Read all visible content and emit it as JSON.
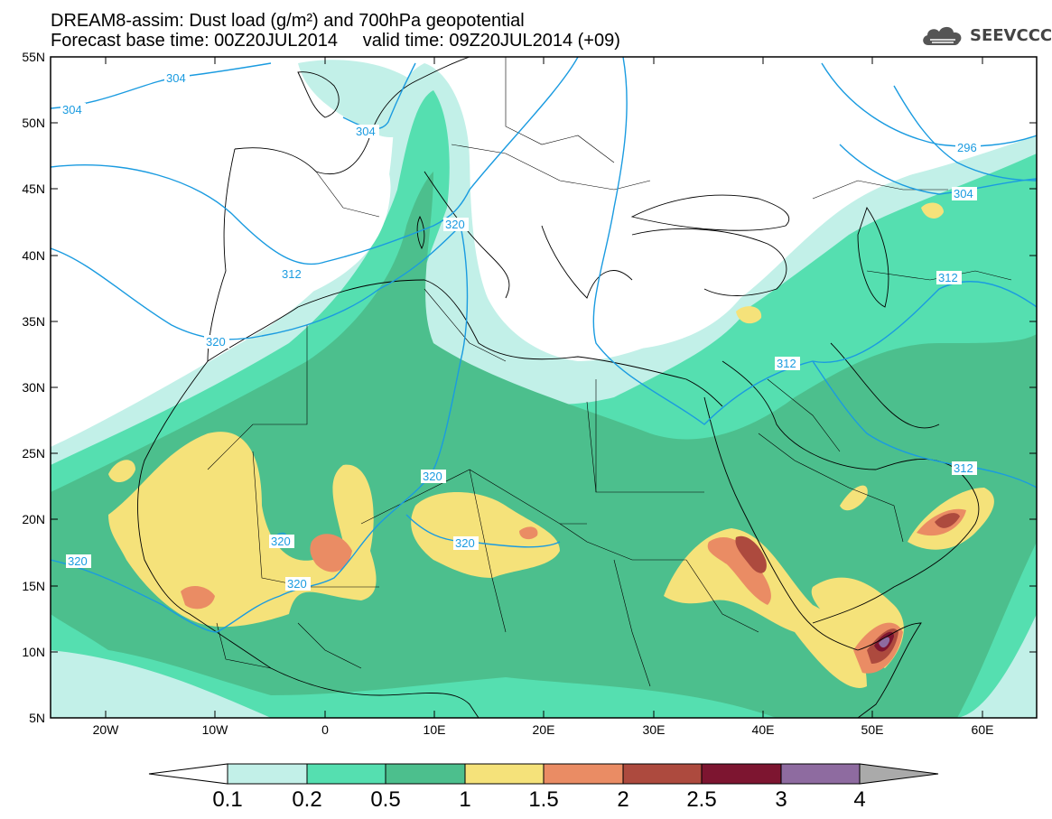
{
  "title": {
    "line1": "DREAM8-assim: Dust load (g/m²) and 700hPa geopotential",
    "line2": "Forecast base time: 00Z20JUL2014     valid time: 09Z20JUL2014 (+09)"
  },
  "logo": {
    "text": "SEEVCCC",
    "icon": "cloud-icon"
  },
  "axes": {
    "lat_labels": [
      "55N",
      "50N",
      "45N",
      "40N",
      "35N",
      "30N",
      "25N",
      "20N",
      "15N",
      "10N",
      "5N"
    ],
    "lon_labels": [
      "20W",
      "10W",
      "0",
      "10E",
      "20E",
      "30E",
      "40E",
      "50E",
      "60E"
    ]
  },
  "legend": {
    "labels": [
      "0.1",
      "0.2",
      "0.5",
      "1",
      "1.5",
      "2",
      "2.5",
      "3",
      "4"
    ],
    "colors": [
      "#c2f0e8",
      "#55dfb0",
      "#4cbf8d",
      "#f5e27a",
      "#ea8c64",
      "#ad4a3e",
      "#7d1530",
      "#8e6ba0",
      "#aaaaaa"
    ]
  },
  "contours": {
    "color": "#1a9be0",
    "labels": [
      {
        "id": "c-304-a",
        "text": "304"
      },
      {
        "id": "c-304-b",
        "text": "304"
      },
      {
        "id": "c-304-c",
        "text": "304"
      },
      {
        "id": "c-304-d",
        "text": "304"
      },
      {
        "id": "c-296",
        "text": "296"
      },
      {
        "id": "c-312-a",
        "text": "312"
      },
      {
        "id": "c-312-b",
        "text": "312"
      },
      {
        "id": "c-312-c",
        "text": "312"
      },
      {
        "id": "c-312-d",
        "text": "312"
      },
      {
        "id": "c-320-a",
        "text": "320"
      },
      {
        "id": "c-320-b",
        "text": "320"
      },
      {
        "id": "c-320-c",
        "text": "320"
      },
      {
        "id": "c-320-d",
        "text": "320"
      },
      {
        "id": "c-320-e",
        "text": "320"
      },
      {
        "id": "c-320-f",
        "text": "320"
      },
      {
        "id": "c-320-g",
        "text": "320"
      }
    ]
  }
}
